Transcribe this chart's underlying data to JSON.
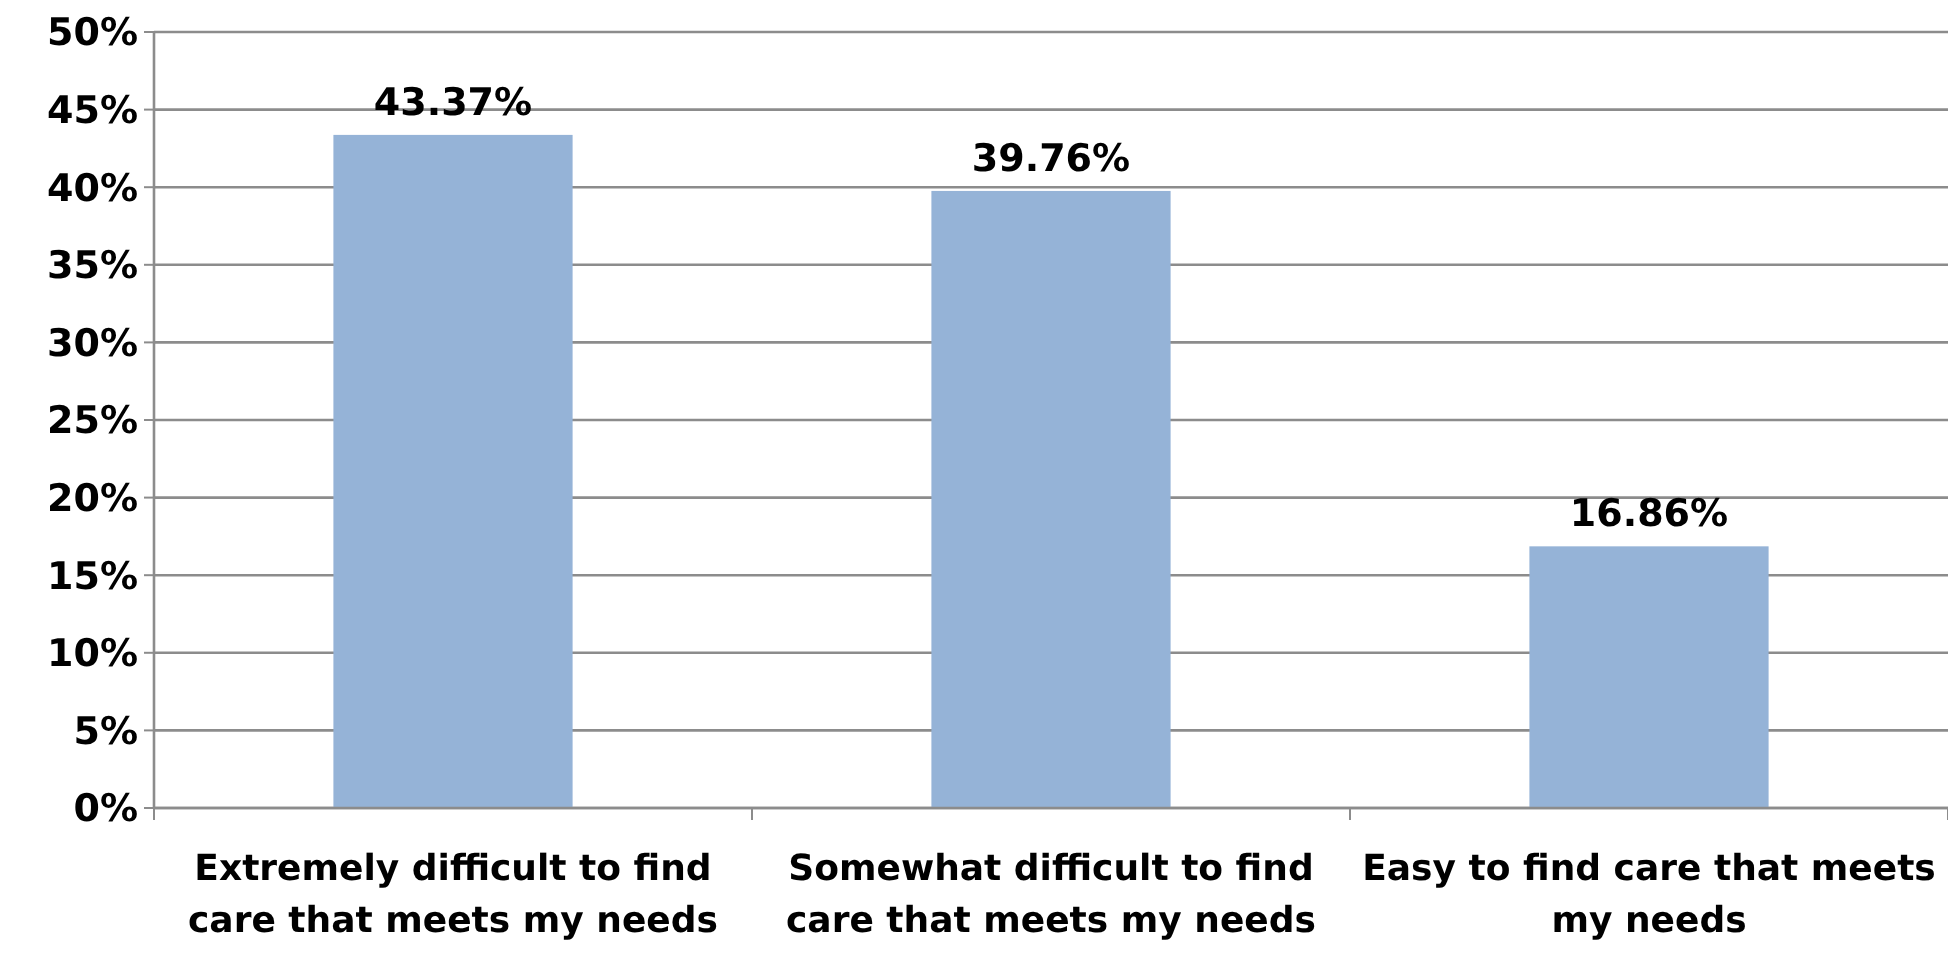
{
  "chart_data": {
    "type": "bar",
    "categories": [
      "Extremely difficult to find care that meets my needs",
      "Somewhat difficult to find care that meets my needs",
      "Easy to find care that meets my needs"
    ],
    "values": [
      43.37,
      39.76,
      16.86
    ],
    "value_labels": [
      "43.37%",
      "39.76%",
      "16.86%"
    ],
    "color": "#95b3d7",
    "ylim": [
      0,
      50
    ],
    "yticks": [
      {
        "value": 0,
        "label": "0%"
      },
      {
        "value": 5,
        "label": "5%"
      },
      {
        "value": 10,
        "label": "10%"
      },
      {
        "value": 15,
        "label": "15%"
      },
      {
        "value": 20,
        "label": "20%"
      },
      {
        "value": 25,
        "label": "25%"
      },
      {
        "value": 30,
        "label": "30%"
      },
      {
        "value": 35,
        "label": "35%"
      },
      {
        "value": 40,
        "label": "40%"
      },
      {
        "value": 45,
        "label": "45%"
      },
      {
        "value": 50,
        "label": "50%"
      }
    ],
    "grid": "y"
  }
}
